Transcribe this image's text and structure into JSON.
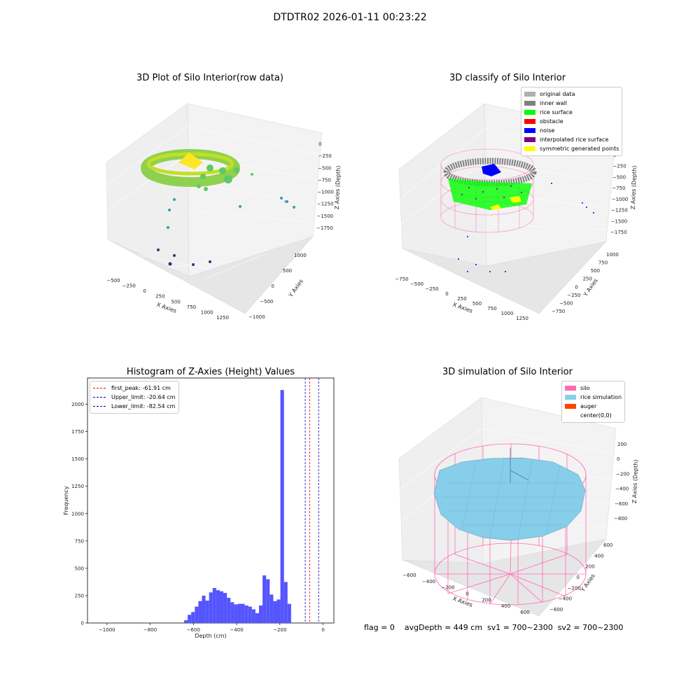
{
  "suptitle": "DTDTR02 2026-01-11 00:23:22",
  "footer": "flag = 0    avgDepth = 449 cm  sv1 = 700~2300  sv2 = 700~2300",
  "colors": {
    "hist_bar": "#5555ff",
    "first_peak": "#ff0000",
    "limits": "#0000bb",
    "silo": "#ff69b4",
    "rice_sim": "#87ceeb",
    "auger": "#ff4500"
  },
  "panel1": {
    "title": "3D Plot of Silo Interior(row data)",
    "xlabel": "X Axies",
    "ylabel": "Y Axies",
    "zlabel": "Z Axies (Depth)",
    "xticks": [
      "−500",
      "−250",
      "0",
      "250",
      "500",
      "750",
      "1000",
      "1250"
    ],
    "yticks": [
      "−1000",
      "−500",
      "0",
      "500",
      "1000"
    ],
    "zticks": [
      "0",
      "−250",
      "−500",
      "−750",
      "−1000",
      "−1250",
      "−1500",
      "−1750"
    ]
  },
  "panel2": {
    "title": "3D classify of Silo Interior",
    "xlabel": "X Axies",
    "ylabel": "Y Axies",
    "zlabel": "Z Axies (Depth)",
    "xticks": [
      "−750",
      "−500",
      "−250",
      "0",
      "250",
      "500",
      "750",
      "1000",
      "1250"
    ],
    "yticks": [
      "−750",
      "−500",
      "−250",
      "0",
      "250",
      "500",
      "750",
      "1000"
    ],
    "zticks": [
      "0",
      "−250",
      "−500",
      "−750",
      "−1000",
      "−1250",
      "−1500",
      "−1750"
    ],
    "legend": [
      {
        "label": "original data",
        "color": "#b0b0b0"
      },
      {
        "label": "inner wall",
        "color": "#808080"
      },
      {
        "label": "rice surface",
        "color": "#00ff00"
      },
      {
        "label": "obstacle",
        "color": "#ff0000"
      },
      {
        "label": "noise",
        "color": "#0000ff"
      },
      {
        "label": "interpolated rice surface",
        "color": "#800080"
      },
      {
        "label": "symmetric generated points",
        "color": "#ffff00"
      }
    ]
  },
  "panel4": {
    "title": "3D simulation of Silo Interior",
    "xlabel": "X Axies",
    "ylabel": "Y Axies",
    "zlabel": "Z Axies (Depth)",
    "xticks": [
      "−600",
      "−400",
      "−200",
      "0",
      "200",
      "400",
      "600"
    ],
    "yticks": [
      "−600",
      "−400",
      "−200",
      "0",
      "200",
      "400",
      "600"
    ],
    "zticks": [
      "200",
      "0",
      "−200",
      "−400",
      "−600",
      "−800"
    ],
    "legend": [
      {
        "label": "silo",
        "color": "#ff69b4"
      },
      {
        "label": "rice simulation",
        "color": "#87ceeb"
      },
      {
        "label": "auger",
        "color": "#ff4500"
      },
      {
        "label": "center(0,0)",
        "color": "#ffffff"
      }
    ]
  },
  "chart_data": {
    "type": "bar",
    "title": "Histogram of Z-Axies (Height) Values",
    "xlabel": "Depth (cm)",
    "ylabel": "Frequency",
    "xlim": [
      -1090,
      50
    ],
    "ylim": [
      0,
      2240
    ],
    "xticks": [
      -1000,
      -800,
      -600,
      -400,
      -200,
      0
    ],
    "yticks": [
      0,
      250,
      500,
      750,
      1000,
      1250,
      1500,
      1750,
      2000
    ],
    "bin_width": 16.5,
    "bin_start": -643,
    "values": [
      25,
      75,
      100,
      150,
      200,
      250,
      205,
      280,
      320,
      300,
      290,
      275,
      230,
      190,
      170,
      175,
      175,
      160,
      150,
      125,
      90,
      160,
      435,
      400,
      260,
      200,
      215,
      2130,
      375,
      175
    ],
    "vlines": [
      {
        "label": "first_peak: -61.91 cm",
        "x": -61.91,
        "color": "#ff0000"
      },
      {
        "label": "Upper_limit: -20.64 cm",
        "x": -20.64,
        "color": "#0000bb"
      },
      {
        "label": "Lower_limit: -82.54 cm",
        "x": -82.54,
        "color": "#0000bb"
      }
    ]
  }
}
